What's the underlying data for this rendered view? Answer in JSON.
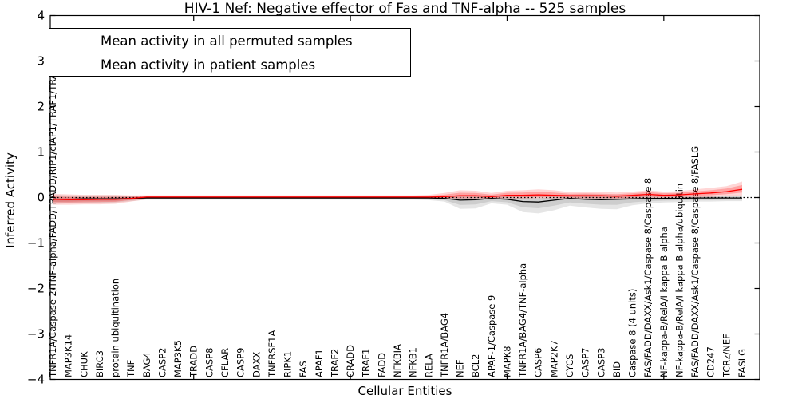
{
  "title": "HIV-1 Nef: Negative effector of Fas and TNF-alpha -- 525 samples",
  "axes": {
    "y_label": "Inferred Activity",
    "x_label": "Cellular Entities"
  },
  "legend": {
    "items": [
      {
        "label": "Mean activity in all permuted samples",
        "color": "#000000"
      },
      {
        "label": "Mean activity in patient samples",
        "color": "#ff0000"
      }
    ]
  },
  "chart_data": {
    "type": "line",
    "title": "HIV-1 Nef: Negative effector of Fas and TNF-alpha -- 525 samples",
    "xlabel": "Cellular Entities",
    "ylabel": "Inferred Activity",
    "ylim": [
      -4,
      4
    ],
    "yticks": [
      4,
      3,
      2,
      1,
      0,
      -1,
      -2,
      -3,
      -4
    ],
    "xtick_positions": [
      10,
      20,
      30,
      40
    ],
    "grid": false,
    "legend_position": "upper left",
    "zero_line_style": "dotted",
    "categories": [
      "TNFR1A/Caspase 2/TNF-alpha/FADD/TRADD/RIP1/cIAP1/TRAF1/TRAF2",
      "MAP3K14",
      "CHUK",
      "BIRC3",
      "protein ubiquitination",
      "TNF",
      "BAG4",
      "CASP2",
      "MAP3K5",
      "TRADD",
      "CASP8",
      "CFLAR",
      "CASP9",
      "DAXX",
      "TNFRSF1A",
      "RIPK1",
      "FAS",
      "APAF1",
      "TRAF2",
      "CRADD",
      "TRAF1",
      "FADD",
      "NFKBIA",
      "NFKB1",
      "RELA",
      "TNFR1A/BAG4",
      "NEF",
      "BCL2",
      "APAF-1/Caspase 9",
      "MAPK8",
      "TNFR1A/BAG4/TNF-alpha",
      "CASP6",
      "MAP2K7",
      "CYCS",
      "CASP7",
      "CASP3",
      "BID",
      "Caspase 8 (4 units)",
      "FAS/FADD/DAXX/Ask1/Caspase 8/Caspase 8",
      "NF-kappa-B/RelA/I kappa B alpha",
      "NF-kappa-B/RelA/I kappa B alpha/ubiquitin",
      "FAS/FADD/DAXX/Ask1/Caspase 8/Caspase 8/FASLG",
      "CD247",
      "TCRz/NEF",
      "FASLG"
    ],
    "series": [
      {
        "name": "Mean activity in all permuted samples",
        "color": "#000000",
        "band_color": "#000000",
        "values": [
          -0.04,
          -0.04,
          -0.03,
          -0.03,
          -0.03,
          -0.02,
          -0.01,
          -0.01,
          -0.01,
          -0.01,
          -0.01,
          -0.01,
          -0.01,
          -0.01,
          -0.01,
          -0.01,
          -0.01,
          -0.01,
          -0.01,
          -0.01,
          -0.01,
          -0.01,
          -0.01,
          -0.01,
          -0.01,
          -0.02,
          -0.06,
          -0.05,
          -0.02,
          -0.04,
          -0.09,
          -0.1,
          -0.06,
          -0.02,
          -0.04,
          -0.05,
          -0.04,
          -0.03,
          -0.02,
          -0.02,
          -0.02,
          -0.01,
          -0.01,
          -0.01,
          -0.01
        ],
        "band_lo": [
          -0.14,
          -0.13,
          -0.12,
          -0.12,
          -0.11,
          -0.08,
          -0.05,
          -0.05,
          -0.05,
          -0.05,
          -0.05,
          -0.05,
          -0.05,
          -0.05,
          -0.05,
          -0.05,
          -0.05,
          -0.05,
          -0.05,
          -0.05,
          -0.05,
          -0.05,
          -0.05,
          -0.05,
          -0.06,
          -0.09,
          -0.25,
          -0.24,
          -0.13,
          -0.16,
          -0.32,
          -0.35,
          -0.28,
          -0.18,
          -0.22,
          -0.25,
          -0.26,
          -0.17,
          -0.13,
          -0.11,
          -0.1,
          -0.09,
          -0.09,
          -0.08,
          -0.08
        ],
        "band_hi": [
          0.06,
          0.05,
          0.05,
          0.05,
          0.05,
          0.04,
          0.03,
          0.03,
          0.03,
          0.03,
          0.03,
          0.03,
          0.03,
          0.03,
          0.03,
          0.03,
          0.03,
          0.03,
          0.03,
          0.03,
          0.03,
          0.03,
          0.03,
          0.03,
          0.03,
          0.04,
          0.05,
          0.05,
          0.05,
          0.05,
          0.05,
          0.04,
          0.05,
          0.06,
          0.07,
          0.06,
          0.06,
          0.05,
          0.05,
          0.04,
          0.04,
          0.04,
          0.04,
          0.05,
          0.05
        ]
      },
      {
        "name": "Mean activity in patient samples",
        "color": "#ff0000",
        "band_color": "#ff0000",
        "values": [
          -0.04,
          -0.05,
          -0.05,
          -0.04,
          -0.04,
          -0.02,
          0.01,
          0.01,
          0.01,
          0.01,
          0.01,
          0.01,
          0.01,
          0.01,
          0.01,
          0.01,
          0.01,
          0.01,
          0.01,
          0.01,
          0.01,
          0.01,
          0.01,
          0.01,
          0.01,
          0.02,
          0.04,
          0.04,
          0.02,
          0.05,
          0.05,
          0.06,
          0.05,
          0.04,
          0.04,
          0.04,
          0.03,
          0.05,
          0.07,
          0.05,
          0.06,
          0.08,
          0.1,
          0.13,
          0.18
        ],
        "band_lo": [
          -0.16,
          -0.16,
          -0.15,
          -0.15,
          -0.14,
          -0.09,
          -0.04,
          -0.04,
          -0.04,
          -0.04,
          -0.04,
          -0.04,
          -0.04,
          -0.04,
          -0.04,
          -0.04,
          -0.04,
          -0.04,
          -0.04,
          -0.04,
          -0.04,
          -0.04,
          -0.04,
          -0.04,
          -0.04,
          -0.04,
          -0.04,
          -0.03,
          -0.05,
          -0.02,
          -0.03,
          -0.02,
          -0.02,
          -0.03,
          -0.03,
          -0.04,
          -0.05,
          -0.03,
          -0.01,
          -0.02,
          -0.01,
          0.0,
          0.01,
          0.03,
          0.05
        ],
        "band_hi": [
          0.08,
          0.07,
          0.06,
          0.06,
          0.06,
          0.05,
          0.05,
          0.05,
          0.05,
          0.05,
          0.05,
          0.05,
          0.05,
          0.05,
          0.05,
          0.05,
          0.05,
          0.05,
          0.05,
          0.05,
          0.05,
          0.05,
          0.05,
          0.05,
          0.06,
          0.1,
          0.16,
          0.15,
          0.1,
          0.15,
          0.16,
          0.18,
          0.16,
          0.12,
          0.13,
          0.12,
          0.11,
          0.13,
          0.16,
          0.13,
          0.14,
          0.18,
          0.21,
          0.25,
          0.35
        ]
      }
    ]
  }
}
